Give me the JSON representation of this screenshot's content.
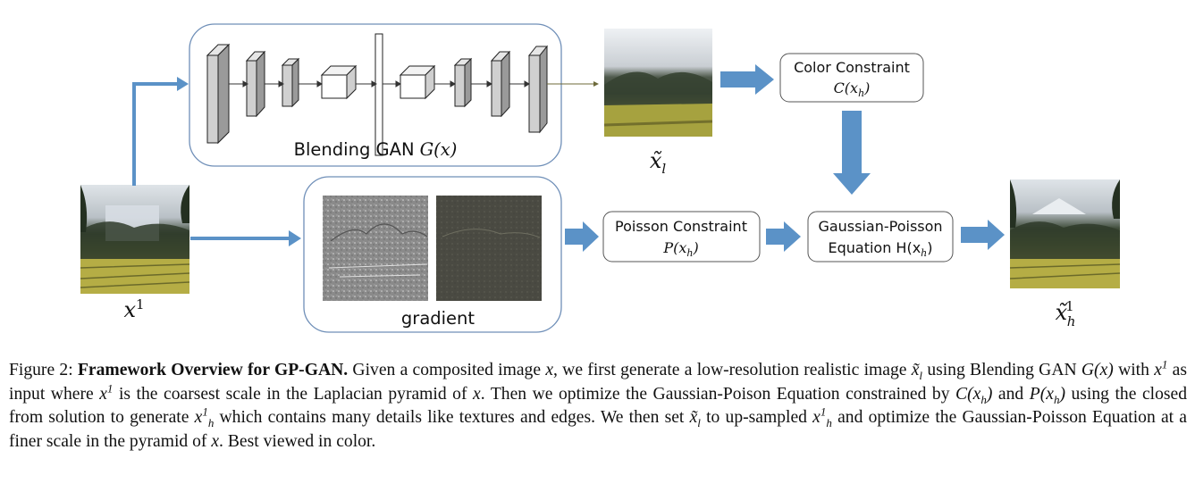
{
  "gan": {
    "label": "Blending GAN",
    "fn": "G(x)"
  },
  "gradient": {
    "label": "gradient"
  },
  "input_image": {
    "label_base": "x",
    "label_sup": "1"
  },
  "low_res_image": {
    "label_base": "x̃",
    "label_sub": "l"
  },
  "output_image": {
    "label_base": "x̃",
    "label_sub": "h",
    "label_sup": "1"
  },
  "color_constraint": {
    "line1": "Color Constraint",
    "line2": "C(x",
    "line2_sub": "h",
    "line2_end": ")"
  },
  "poisson_constraint": {
    "line1": "Poisson Constraint",
    "line2": "P(x",
    "line2_sub": "h",
    "line2_end": ")"
  },
  "gp_equation": {
    "line1": "Gaussian-Poisson",
    "line2": "Equation H(x",
    "line2_sub": "h",
    "line2_end": ")"
  },
  "caption": {
    "fig": "Figure 2:",
    "title": "Framework Overview for GP-GAN.",
    "t1": " Given a composited image ",
    "t2": ", we first generate a low-resolution realistic image ",
    "t3": " using Blending GAN ",
    "t4": " with ",
    "t5": " as input where ",
    "t6": " is the coarsest scale in the Laplacian pyramid of ",
    "t7": ". Then we optimize the Gaussian-Poison Equation constrained by ",
    "t8": " and ",
    "t9": " using the closed from solution to generate ",
    "t10": " which contains many details like textures and edges. We then set ",
    "t11": " to up-sampled ",
    "t12": " and optimize the Gaussian-Poisson Equation at a finer scale in the pyramid of ",
    "t13": ". Best viewed in color.",
    "x": "x",
    "xl_base": "x̃",
    "xl_sub": "l",
    "gx": "G(x)",
    "x1_base": "x",
    "x1_sup": "1",
    "cxh": "C(x",
    "pxh": "P(x",
    "xh_sub": "h",
    "paren": ")",
    "xh1_base": "x",
    "xh1_sup": "1",
    "xh1_sub": "h"
  },
  "colors": {
    "box_border": "#6f8fb8",
    "arrow_blue": "#5b92c7",
    "layer_fill": "#cfcfcf",
    "text": "#111111"
  }
}
